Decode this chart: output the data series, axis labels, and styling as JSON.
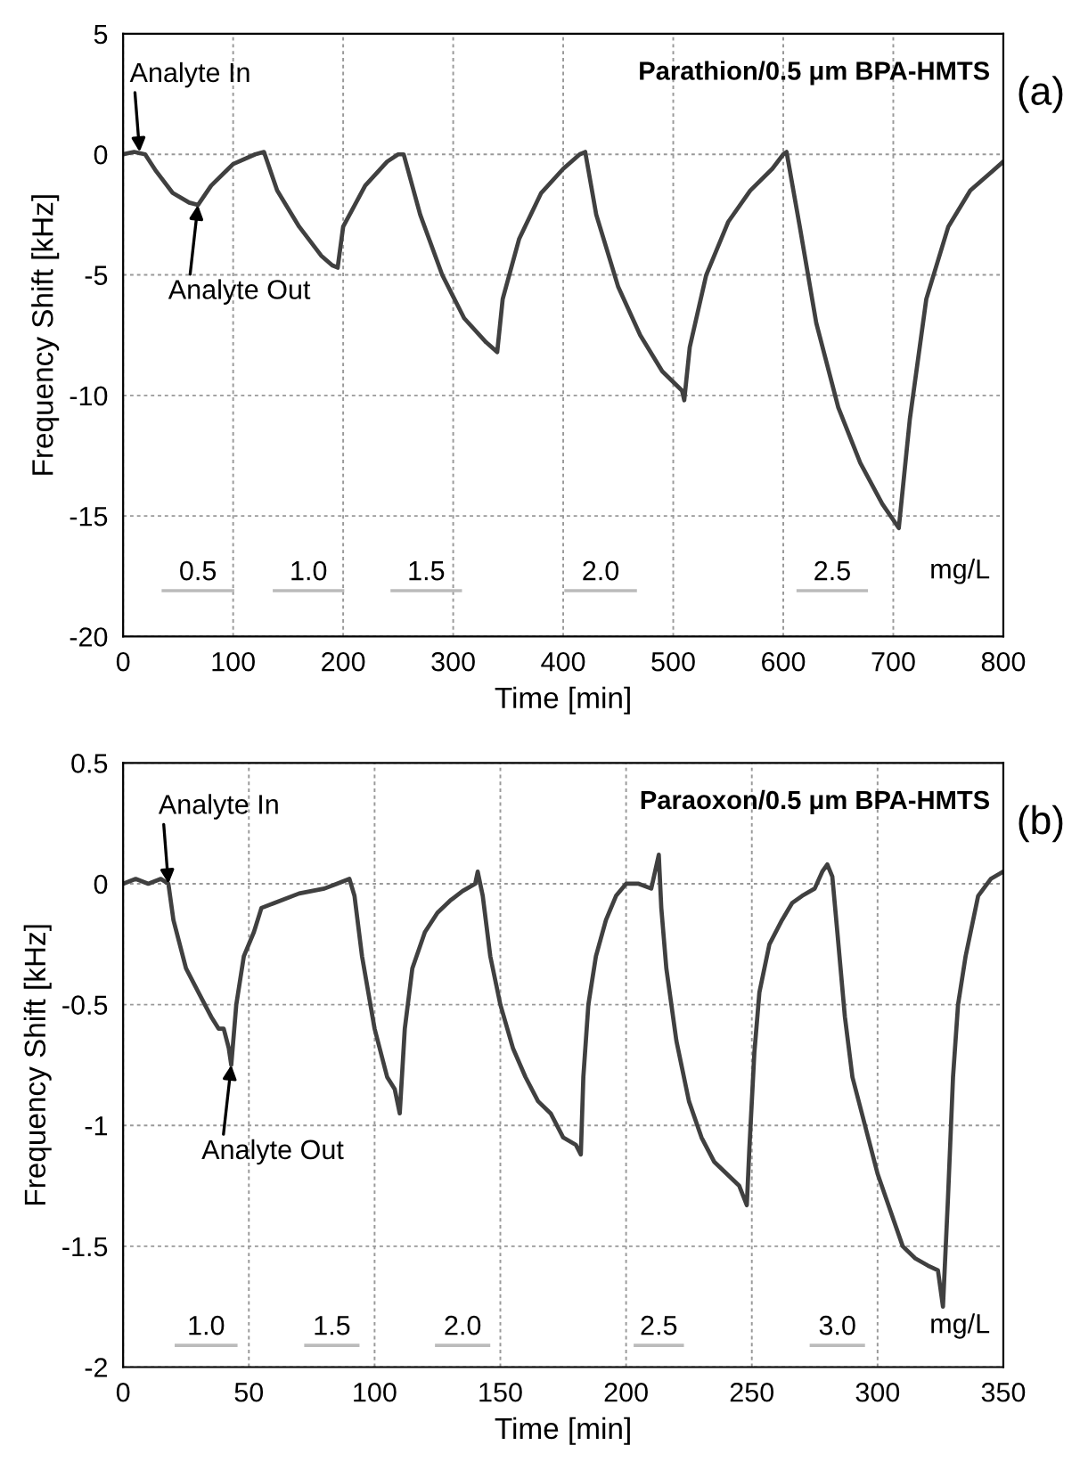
{
  "chart_data": [
    {
      "type": "line",
      "title": "Parathion/0.5 μm BPA-HMTS",
      "xlabel": "Time [min]",
      "ylabel": "Frequency Shift [kHz]",
      "xlim": [
        0,
        800
      ],
      "ylim": [
        -20,
        5
      ],
      "xticks": [
        0,
        100,
        200,
        300,
        400,
        500,
        600,
        700,
        800
      ],
      "yticks": [
        -20,
        -15,
        -10,
        -5,
        0,
        5
      ],
      "grid": true,
      "legend": false,
      "marker": "none",
      "line_style": "solid",
      "series": [
        {
          "color": "#404040",
          "x": [
            0,
            10,
            20,
            30,
            45,
            60,
            68,
            80,
            100,
            120,
            128,
            140,
            160,
            180,
            190,
            195,
            200,
            220,
            240,
            250,
            255,
            270,
            290,
            310,
            330,
            340,
            345,
            360,
            380,
            400,
            415,
            420,
            430,
            450,
            470,
            490,
            508,
            510,
            515,
            530,
            550,
            570,
            590,
            600,
            603,
            615,
            630,
            650,
            670,
            690,
            702,
            705,
            715,
            730,
            750,
            770,
            790,
            800
          ],
          "values": [
            0,
            0.1,
            0,
            -0.7,
            -1.6,
            -2.0,
            -2.1,
            -1.3,
            -0.4,
            0,
            0.1,
            -1.5,
            -3.0,
            -4.2,
            -4.6,
            -4.7,
            -3.0,
            -1.3,
            -0.3,
            0,
            0,
            -2.5,
            -5.0,
            -6.8,
            -7.8,
            -8.2,
            -6.0,
            -3.5,
            -1.6,
            -0.6,
            0,
            0.1,
            -2.5,
            -5.5,
            -7.5,
            -9.0,
            -9.8,
            -10.2,
            -8.0,
            -5.0,
            -2.8,
            -1.5,
            -0.6,
            0,
            0.1,
            -3,
            -7,
            -10.5,
            -12.8,
            -14.5,
            -15.3,
            -15.5,
            -11,
            -6,
            -3,
            -1.5,
            -0.7,
            -0.3
          ]
        },
        {
          "name": "0.5",
          "color": "#bbbbbb",
          "x": [
            35,
            101
          ],
          "values": [
            -18.1,
            -18.1
          ]
        },
        {
          "name": "1.0",
          "color": "#bbbbbb",
          "x": [
            136,
            201
          ],
          "values": [
            -18.1,
            -18.1
          ]
        },
        {
          "name": "1.5",
          "color": "#bbbbbb",
          "x": [
            243,
            308
          ],
          "values": [
            -18.1,
            -18.1
          ]
        },
        {
          "name": "2.0",
          "color": "#bbbbbb",
          "x": [
            401,
            467
          ],
          "values": [
            -18.1,
            -18.1
          ]
        },
        {
          "name": "2.5",
          "color": "#bbbbbb",
          "x": [
            612,
            677
          ],
          "values": [
            -18.1,
            -18.1
          ]
        }
      ],
      "annotations": [
        {
          "text": "Analyte In",
          "x": 15,
          "y": 0.1
        },
        {
          "text": "Analyte Out",
          "x": 68,
          "y": -2.1
        },
        "(a)",
        "mg/L"
      ]
    },
    {
      "type": "line",
      "title": "Paraoxon/0.5 μm BPA-HMTS",
      "xlabel": "Time [min]",
      "ylabel": "Frequency Shift [kHz]",
      "xlim": [
        0,
        350
      ],
      "ylim": [
        -2,
        0.5
      ],
      "xticks": [
        0,
        50,
        100,
        150,
        200,
        250,
        300,
        350
      ],
      "yticks": [
        -2,
        -1.5,
        -1,
        -0.5,
        0,
        0.5
      ],
      "grid": true,
      "legend": false,
      "marker": "none",
      "line_style": "solid",
      "series": [
        {
          "color": "#404040",
          "x": [
            0,
            5,
            10,
            15,
            18,
            20,
            25,
            30,
            35,
            38,
            40,
            42,
            43,
            45,
            48,
            52,
            55,
            60,
            70,
            80,
            85,
            90,
            92,
            95,
            100,
            105,
            108,
            110,
            112,
            115,
            120,
            125,
            130,
            135,
            140,
            141,
            143,
            146,
            150,
            155,
            160,
            165,
            170,
            175,
            180,
            182,
            183,
            185,
            188,
            192,
            196,
            200,
            205,
            210,
            213,
            214,
            216,
            220,
            225,
            230,
            235,
            240,
            245,
            248,
            249,
            251,
            253,
            257,
            262,
            266,
            270,
            275,
            278,
            280,
            282,
            284,
            287,
            290,
            295,
            300,
            305,
            310,
            315,
            320,
            324,
            326,
            328,
            330,
            332,
            335,
            340,
            345,
            350
          ],
          "values": [
            0,
            0.02,
            0,
            0.02,
            0,
            -0.15,
            -0.35,
            -0.45,
            -0.55,
            -0.6,
            -0.6,
            -0.68,
            -0.75,
            -0.5,
            -0.3,
            -0.2,
            -0.1,
            -0.08,
            -0.04,
            -0.02,
            0,
            0.02,
            -0.05,
            -0.3,
            -0.6,
            -0.8,
            -0.85,
            -0.95,
            -0.6,
            -0.35,
            -0.2,
            -0.12,
            -0.07,
            -0.03,
            0,
            0.05,
            -0.05,
            -0.3,
            -0.5,
            -0.68,
            -0.8,
            -0.9,
            -0.95,
            -1.05,
            -1.08,
            -1.12,
            -0.8,
            -0.5,
            -0.3,
            -0.15,
            -0.05,
            0,
            0,
            -0.02,
            0.12,
            -0.1,
            -0.35,
            -0.65,
            -0.9,
            -1.05,
            -1.15,
            -1.2,
            -1.25,
            -1.33,
            -1.1,
            -0.7,
            -0.45,
            -0.25,
            -0.15,
            -0.08,
            -0.05,
            -0.02,
            0.05,
            0.08,
            0.03,
            -0.2,
            -0.55,
            -0.8,
            -1.0,
            -1.2,
            -1.35,
            -1.5,
            -1.55,
            -1.58,
            -1.6,
            -1.75,
            -1.3,
            -0.8,
            -0.5,
            -0.3,
            -0.05,
            0.02,
            0.05
          ]
        },
        {
          "name": "1.0",
          "color": "#bbbbbb",
          "x": [
            20.5,
            45.5
          ],
          "values": [
            -1.91,
            -1.91
          ]
        },
        {
          "name": "1.5",
          "color": "#bbbbbb",
          "x": [
            72,
            94
          ],
          "values": [
            -1.91,
            -1.91
          ]
        },
        {
          "name": "2.0",
          "color": "#bbbbbb",
          "x": [
            124,
            146
          ],
          "values": [
            -1.91,
            -1.91
          ]
        },
        {
          "name": "2.5",
          "color": "#bbbbbb",
          "x": [
            203,
            223
          ],
          "values": [
            -1.91,
            -1.91
          ]
        },
        {
          "name": "3.0",
          "color": "#bbbbbb",
          "x": [
            273,
            295
          ],
          "values": [
            -1.91,
            -1.91
          ]
        }
      ],
      "annotations": [
        {
          "text": "Analyte In",
          "x": 18,
          "y": 0
        },
        {
          "text": "Analyte Out",
          "x": 43,
          "y": -0.75
        },
        "(b)",
        "mg/L"
      ]
    }
  ]
}
